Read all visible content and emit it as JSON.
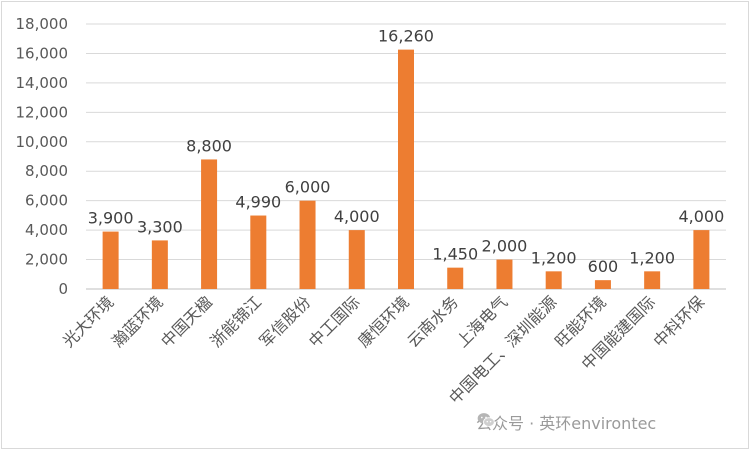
{
  "chart_data": {
    "type": "bar",
    "categories": [
      "光大环境",
      "瀚蓝环境",
      "中国天楹",
      "浙能锦江",
      "军信股份",
      "中工国际",
      "康恒环境",
      "云南水务",
      "上海电气",
      "中国电工、深圳能源",
      "旺能环境",
      "中国能建国际",
      "中科环保"
    ],
    "values": [
      3900,
      3300,
      8800,
      4990,
      6000,
      4000,
      16260,
      1450,
      2000,
      1200,
      600,
      1200,
      4000
    ],
    "data_labels": [
      "3,900",
      "3,300",
      "8,800",
      "4,990",
      "6,000",
      "4,000",
      "16,260",
      "1,450",
      "2,000",
      "1,200",
      "600",
      "1,200",
      "4,000"
    ],
    "ylim": [
      0,
      18000
    ],
    "yticks": [
      "0",
      "2,000",
      "4,000",
      "6,000",
      "8,000",
      "10,000",
      "12,000",
      "14,000",
      "16,000",
      "18,000"
    ],
    "title": "",
    "xlabel": "",
    "ylabel": "",
    "grid": true,
    "bar_color": "#ED7D31",
    "grid_color": "#d9d9d9"
  },
  "watermark": {
    "text": "公众号 · 英环environtec",
    "icon": "wechat-icon"
  }
}
